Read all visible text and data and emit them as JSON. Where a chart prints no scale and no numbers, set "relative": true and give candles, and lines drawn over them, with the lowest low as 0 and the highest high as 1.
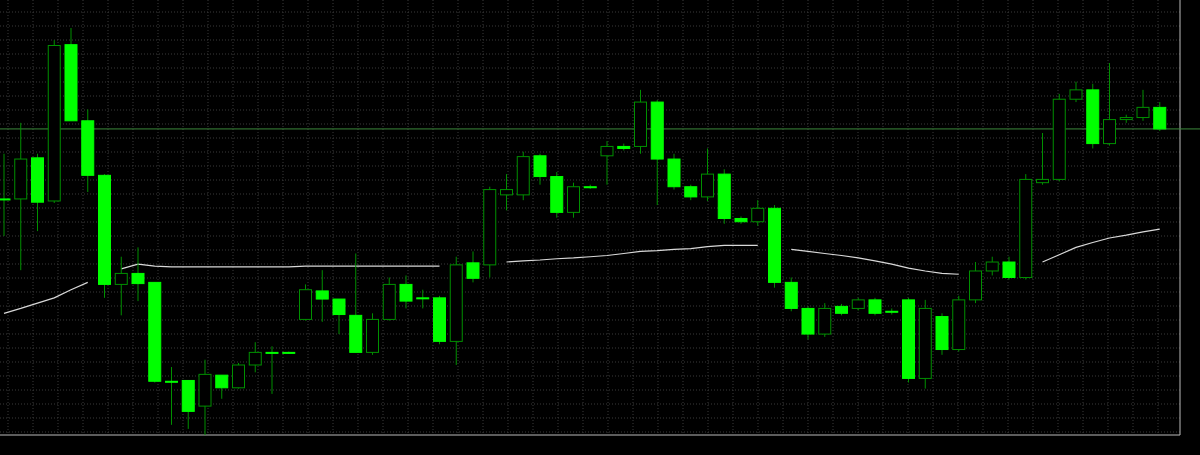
{
  "chart_data": {
    "type": "candlestick",
    "relative": true,
    "grid": true,
    "colors": [
      "#00ff00",
      "#009000",
      "#00ff00",
      "#009000",
      "#00ff00",
      "#00ff00",
      "#00ff00",
      "#009000",
      "#00ff00",
      "#00ff00",
      "#00ff00",
      "#00ff00",
      "#009000",
      "#00ff00",
      "#009000",
      "#009000",
      "#00ff00",
      "#00ff00",
      "#009000",
      "#00ff00",
      "#00ff00",
      "#00ff00",
      "#009000",
      "#009000",
      "#00ff00",
      "#00ff00",
      "#00ff00",
      "#009000",
      "#00ff00",
      "#009000",
      "#009000",
      "#009000",
      "#00ff00",
      "#00ff00",
      "#009000",
      "#00ff00",
      "#009000",
      "#00ff00",
      "#009000",
      "#00ff00",
      "#00ff00",
      "#00ff00",
      "#009000",
      "#00ff00",
      "#00ff00",
      "#009000",
      "#00ff00",
      "#00ff00",
      "#00ff00",
      "#009000",
      "#00ff00",
      "#009000",
      "#00ff00",
      "#00ff00",
      "#00ff00",
      "#009000",
      "#00ff00",
      "#009000",
      "#009000",
      "#009000",
      "#00ff00",
      "#009000",
      "#009000",
      "#009000",
      "#009000",
      "#00ff00",
      "#009000",
      "#009000",
      "#009000",
      "#00ff00"
    ],
    "categories": [
      null,
      null,
      null,
      null,
      null,
      null,
      null,
      null,
      null,
      null,
      null,
      null,
      null,
      null,
      null,
      null,
      null,
      null,
      null,
      null,
      null,
      null,
      null,
      null,
      null,
      null,
      null,
      null,
      null,
      null,
      null,
      null,
      null,
      null,
      null,
      null,
      null,
      null,
      null,
      null,
      null,
      null,
      null,
      null,
      null,
      null,
      null,
      null,
      null,
      null,
      null,
      null,
      null,
      null,
      null,
      null,
      null,
      null,
      null,
      null,
      null,
      null,
      null,
      null,
      null,
      null,
      null,
      null,
      null,
      null
    ],
    "ohlc": [
      [
        0.58,
        0.691,
        0.489,
        0.58
      ],
      [
        0.58,
        0.767,
        0.405,
        0.678
      ],
      [
        0.681,
        0.691,
        0.501,
        0.572
      ],
      [
        0.575,
        0.97,
        0.57,
        0.957
      ],
      [
        0.959,
        1,
        0.772,
        0.772
      ],
      [
        0.772,
        0.8,
        0.597,
        0.638
      ],
      [
        0.638,
        0.641,
        0.337,
        0.37
      ],
      [
        0.37,
        0.438,
        0.294,
        0.397
      ],
      [
        0.397,
        0.461,
        0.329,
        0.372
      ],
      [
        0.375,
        0.375,
        0.129,
        0.132
      ],
      [
        0.132,
        0.167,
        0.025,
        0.132
      ],
      [
        0.134,
        0.134,
        0.015,
        0.058
      ],
      [
        0.071,
        0.185,
        0,
        0.149
      ],
      [
        0.147,
        0.147,
        0.089,
        0.116
      ],
      [
        0.116,
        0.177,
        0.114,
        0.172
      ],
      [
        0.172,
        0.228,
        0.154,
        0.203
      ],
      [
        0.203,
        0.218,
        0.101,
        0.203
      ],
      [
        0.203,
        0.205,
        0.2,
        0.203
      ],
      [
        0.284,
        0.37,
        0.281,
        0.357
      ],
      [
        0.354,
        0.405,
        0.278,
        0.334
      ],
      [
        0.334,
        0.334,
        0.248,
        0.296
      ],
      [
        0.294,
        0.446,
        0.203,
        0.203
      ],
      [
        0.203,
        0.299,
        0.197,
        0.284
      ],
      [
        0.284,
        0.387,
        0.281,
        0.37
      ],
      [
        0.37,
        0.392,
        0.311,
        0.329
      ],
      [
        0.337,
        0.357,
        0.311,
        0.337
      ],
      [
        0.337,
        0.342,
        0.223,
        0.23
      ],
      [
        0.23,
        0.438,
        0.172,
        0.418
      ],
      [
        0.423,
        0.451,
        0.375,
        0.385
      ],
      [
        0.418,
        0.61,
        0.387,
        0.603
      ],
      [
        0.59,
        0.641,
        0.552,
        0.603
      ],
      [
        0.59,
        0.696,
        0.577,
        0.684
      ],
      [
        0.686,
        0.691,
        0.615,
        0.635
      ],
      [
        0.635,
        0.646,
        0.534,
        0.547
      ],
      [
        0.547,
        0.62,
        0.534,
        0.61
      ],
      [
        0.61,
        0.615,
        0.605,
        0.61
      ],
      [
        0.686,
        0.722,
        0.615,
        0.709
      ],
      [
        0.709,
        0.716,
        0.699,
        0.704
      ],
      [
        0.709,
        0.848,
        0.691,
        0.818
      ],
      [
        0.818,
        0.823,
        0.565,
        0.678
      ],
      [
        0.678,
        0.691,
        0.603,
        0.61
      ],
      [
        0.61,
        0.615,
        0.577,
        0.585
      ],
      [
        0.585,
        0.704,
        0.575,
        0.641
      ],
      [
        0.641,
        0.653,
        0.519,
        0.532
      ],
      [
        0.532,
        0.537,
        0.519,
        0.524
      ],
      [
        0.524,
        0.577,
        0.514,
        0.557
      ],
      [
        0.557,
        0.565,
        0.362,
        0.375
      ],
      [
        0.375,
        0.387,
        0.304,
        0.311
      ],
      [
        0.311,
        0.316,
        0.235,
        0.248
      ],
      [
        0.248,
        0.324,
        0.241,
        0.311
      ],
      [
        0.316,
        0.322,
        0.294,
        0.299
      ],
      [
        0.311,
        0.337,
        0.306,
        0.332
      ],
      [
        0.332,
        0.337,
        0.294,
        0.299
      ],
      [
        0.304,
        0.311,
        0.296,
        0.304
      ],
      [
        0.332,
        0.337,
        0.129,
        0.139
      ],
      [
        0.139,
        0.332,
        0.114,
        0.311
      ],
      [
        0.291,
        0.299,
        0.197,
        0.21
      ],
      [
        0.21,
        0.342,
        0.205,
        0.332
      ],
      [
        0.332,
        0.425,
        0.324,
        0.403
      ],
      [
        0.403,
        0.438,
        0.392,
        0.425
      ],
      [
        0.425,
        0.438,
        0.382,
        0.387
      ],
      [
        0.387,
        0.641,
        0.382,
        0.628
      ],
      [
        0.62,
        0.742,
        0.615,
        0.628
      ],
      [
        0.628,
        0.838,
        0.623,
        0.825
      ],
      [
        0.825,
        0.868,
        0.818,
        0.848
      ],
      [
        0.848,
        0.863,
        0.704,
        0.716
      ],
      [
        0.716,
        0.914,
        0.711,
        0.775
      ],
      [
        0.775,
        0.787,
        0.767,
        0.78
      ],
      [
        0.78,
        0.848,
        0.772,
        0.805
      ],
      [
        0.805,
        0.818,
        0.747,
        0.752
      ]
    ],
    "series": [
      {
        "type": "line",
        "color": "#d8d8d8",
        "values": [
          0.299,
          0.311,
          0.324,
          0.337,
          0.357,
          0.375,
          null,
          0.408,
          0.42,
          0.415,
          0.413,
          0.413,
          0.413,
          0.413,
          0.413,
          0.413,
          0.413,
          0.413,
          0.415,
          0.415,
          0.415,
          0.415,
          0.415,
          0.415,
          0.415,
          0.415,
          0.415,
          null,
          null,
          null,
          0.425,
          0.428,
          0.43,
          0.433,
          0.435,
          0.438,
          0.441,
          0.446,
          0.451,
          0.453,
          0.456,
          0.458,
          0.463,
          0.466,
          0.466,
          0.466,
          null,
          0.456,
          0.451,
          0.446,
          0.441,
          0.435,
          0.428,
          0.42,
          0.41,
          0.403,
          0.397,
          0.395,
          null,
          null,
          null,
          null,
          0.425,
          0.443,
          0.461,
          0.473,
          0.484,
          0.491,
          0.499,
          0.506
        ]
      }
    ],
    "ref_lines": [
      {
        "axis": "y",
        "value": 0.752,
        "color": "#3c8a3c"
      }
    ]
  }
}
